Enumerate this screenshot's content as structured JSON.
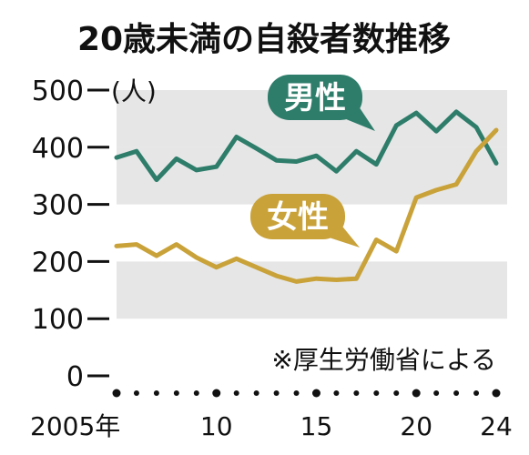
{
  "chart_data": {
    "type": "line",
    "title": "20歳未満の自殺者数推移",
    "unit_label": "(人)",
    "source_note": "※厚生労働省による",
    "x": [
      2005,
      2006,
      2007,
      2008,
      2009,
      2010,
      2011,
      2012,
      2013,
      2014,
      2015,
      2016,
      2017,
      2018,
      2019,
      2020,
      2021,
      2022,
      2023,
      2024
    ],
    "x_tick_labels": [
      {
        "year": 2005,
        "label": "2005年"
      },
      {
        "year": 2010,
        "label": "10"
      },
      {
        "year": 2015,
        "label": "15"
      },
      {
        "year": 2020,
        "label": "20"
      },
      {
        "year": 2024,
        "label": "24"
      }
    ],
    "y_ticks": [
      0,
      100,
      200,
      300,
      400,
      500
    ],
    "ylim": [
      0,
      500
    ],
    "grid": "alternating bands",
    "series": [
      {
        "name": "男性",
        "color": "#2e7d6b",
        "values": [
          382,
          393,
          343,
          380,
          360,
          366,
          418,
          398,
          377,
          375,
          385,
          358,
          393,
          370,
          438,
          460,
          428,
          462,
          435,
          372
        ]
      },
      {
        "name": "女性",
        "color": "#c9a23a",
        "values": [
          227,
          230,
          210,
          230,
          207,
          190,
          205,
          190,
          175,
          165,
          170,
          168,
          170,
          238,
          218,
          312,
          325,
          335,
          393,
          430
        ]
      }
    ]
  }
}
